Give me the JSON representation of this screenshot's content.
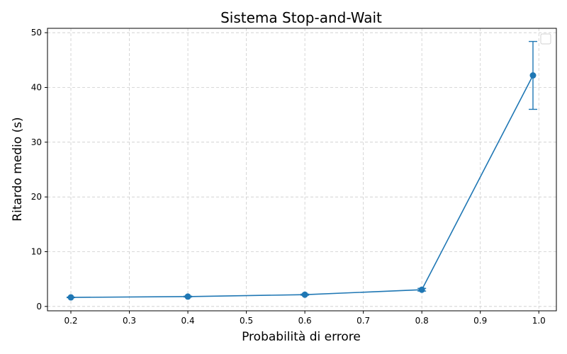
{
  "chart_data": {
    "type": "line",
    "title": "Sistema Stop-and-Wait",
    "xlabel": "Probabilità di errore",
    "ylabel": "Ritardo medio (s)",
    "xlim": [
      0.16,
      1.03
    ],
    "ylim": [
      -0.8,
      50.8
    ],
    "x_ticks": [
      0.2,
      0.3,
      0.4,
      0.5,
      0.6,
      0.7,
      0.8,
      0.9,
      1.0
    ],
    "x_tick_labels": [
      "0.2",
      "0.3",
      "0.4",
      "0.5",
      "0.6",
      "0.7",
      "0.8",
      "0.9",
      "1.0"
    ],
    "y_ticks": [
      0,
      10,
      20,
      30,
      40,
      50
    ],
    "y_tick_labels": [
      "0",
      "10",
      "20",
      "30",
      "40",
      "50"
    ],
    "grid": true,
    "legend": "top-right",
    "series": [
      {
        "color": "#1f77b4",
        "marker": "circle",
        "points": [
          {
            "x": 0.2,
            "y": 1.65,
            "err": 0.05
          },
          {
            "x": 0.4,
            "y": 1.8,
            "err": 0.08
          },
          {
            "x": 0.6,
            "y": 2.15,
            "err": 0.1
          },
          {
            "x": 0.8,
            "y": 3.05,
            "err": 0.25
          },
          {
            "x": 0.99,
            "y": 42.2,
            "err": 6.2
          }
        ]
      }
    ]
  }
}
